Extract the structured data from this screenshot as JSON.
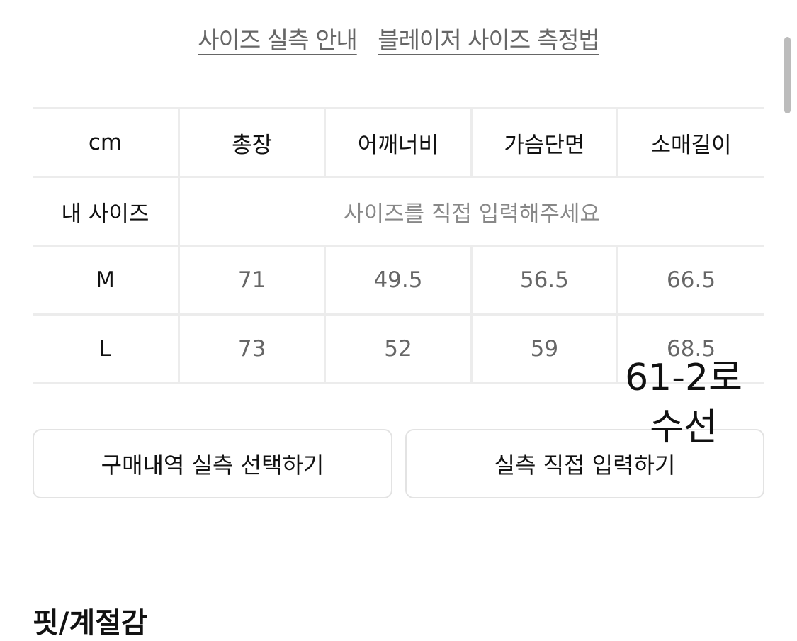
{
  "links": [
    "사이즈 실측 안내",
    "블레이저 사이즈 측정법"
  ],
  "table": {
    "headers": [
      "cm",
      "총장",
      "어깨너비",
      "가슴단면",
      "소매길이"
    ],
    "my_size": {
      "label": "내 사이즈",
      "placeholder": "사이즈를 직접 입력해주세요"
    },
    "rows": [
      {
        "size": "M",
        "values": [
          "71",
          "49.5",
          "56.5",
          "66.5"
        ]
      },
      {
        "size": "L",
        "values": [
          "73",
          "52",
          "59",
          "68.5"
        ]
      }
    ]
  },
  "buttons": {
    "history": "구매내역 실측 선택하기",
    "manual": "실측 직접 입력하기"
  },
  "annotation": [
    "61-2로",
    "수선"
  ],
  "next_section": "핏/계절감"
}
